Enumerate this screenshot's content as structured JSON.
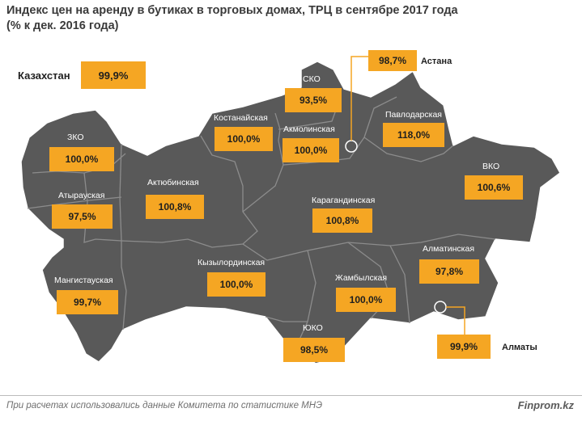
{
  "title": {
    "line1": "Индекс цен на аренду в бутиках  в торговых домах, ТРЦ в сентябре 2017 года",
    "line2": "(%  к дек. 2016 года)"
  },
  "kazakhstan": {
    "label": "Казахстан",
    "value": "99,9%"
  },
  "regions": [
    {
      "name": "ЗКО",
      "value": "100,0%"
    },
    {
      "name": "Атырауская",
      "value": "97,5%"
    },
    {
      "name": "Мангистауская",
      "value": "99,7%"
    },
    {
      "name": "Актюбинская",
      "value": "100,8%"
    },
    {
      "name": "Костанайская",
      "value": "100,0%"
    },
    {
      "name": "СКО",
      "value": "93,5%"
    },
    {
      "name": "Акмолинская",
      "value": "100,0%"
    },
    {
      "name": "Павлодарская",
      "value": "118,0%"
    },
    {
      "name": "ВКО",
      "value": "100,6%"
    },
    {
      "name": "Карагандинская",
      "value": "100,8%"
    },
    {
      "name": "Кызылординская",
      "value": "100,0%"
    },
    {
      "name": "Жамбылская",
      "value": "100,0%"
    },
    {
      "name": "ЮКО",
      "value": "98,5%"
    },
    {
      "name": "Алматинская",
      "value": "97,8%"
    }
  ],
  "cities": [
    {
      "name": "Астана",
      "value": "98,7%"
    },
    {
      "name": "Алматы",
      "value": "99,9%"
    }
  ],
  "footer": {
    "source": "При расчетах использовались данные Комитета по статистике МНЭ",
    "brand": "Finprom.kz"
  },
  "colors": {
    "map": "#595959",
    "borders": "#8c8c8c",
    "badge": "#f5a623"
  }
}
